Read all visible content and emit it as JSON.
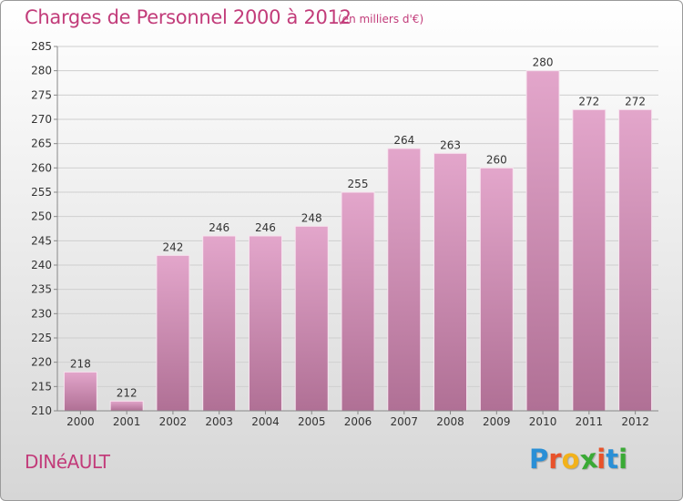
{
  "header": {
    "title": "Charges de Personnel 2000 à 2012",
    "subtitle": "(en milliers d'€)"
  },
  "footer": {
    "place": "DINéAULT",
    "logo_letters": [
      {
        "ch": "P",
        "color": "#2a8fd6"
      },
      {
        "ch": "r",
        "color": "#e8522a"
      },
      {
        "ch": "o",
        "color": "#f2b21b"
      },
      {
        "ch": "x",
        "color": "#3aaa35"
      },
      {
        "ch": "i",
        "color": "#e8522a"
      },
      {
        "ch": "t",
        "color": "#2a8fd6"
      },
      {
        "ch": "i",
        "color": "#3aaa35"
      }
    ]
  },
  "colors": {
    "bar_top": "#e3a6cb",
    "bar_bottom": "#b07095",
    "accent": "#c23c7a"
  },
  "chart_data": {
    "type": "bar",
    "categories": [
      "2000",
      "2001",
      "2002",
      "2003",
      "2004",
      "2005",
      "2006",
      "2007",
      "2008",
      "2009",
      "2010",
      "2011",
      "2012"
    ],
    "values": [
      218,
      212,
      242,
      246,
      246,
      248,
      255,
      264,
      263,
      260,
      280,
      272,
      272
    ],
    "ylim": [
      210,
      285
    ],
    "yticks": [
      210,
      215,
      220,
      225,
      230,
      235,
      240,
      245,
      250,
      255,
      260,
      265,
      270,
      275,
      280,
      285
    ],
    "grid": true,
    "legend": "none"
  }
}
